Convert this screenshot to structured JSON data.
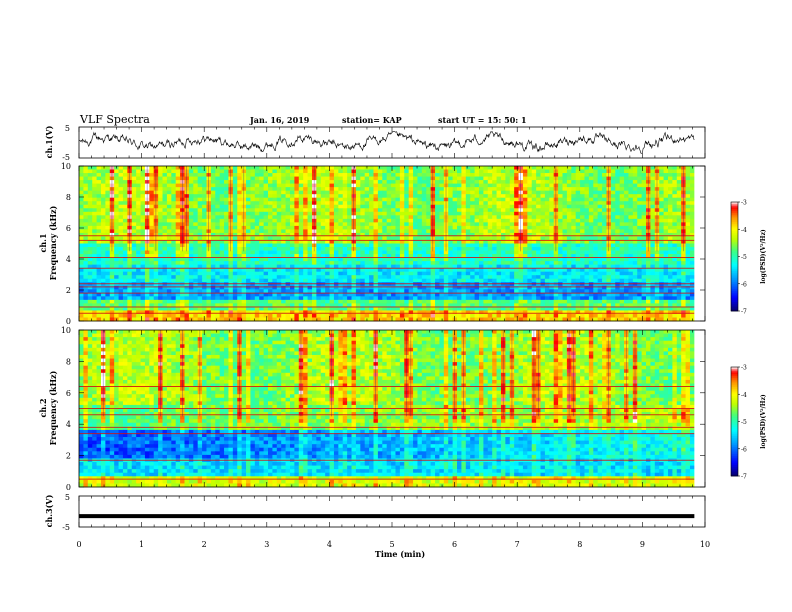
{
  "header": {
    "title": "VLF Spectra",
    "date": "Jan. 16, 2019",
    "station": "station= KAP",
    "start": "start  UT  =   15: 50: 1"
  },
  "colors": {
    "waveform": "#000000",
    "colormap": [
      "#08006a",
      "#0000ff",
      "#00a0ff",
      "#00ffff",
      "#40ff80",
      "#c0ff00",
      "#ffff00",
      "#ff9000",
      "#ff0000",
      "#ffffff"
    ]
  },
  "chart_data": [
    {
      "type": "line",
      "panel": "ch1-waveform",
      "ylabel": "ch.1(V)",
      "ylim": [
        -5,
        5
      ],
      "ytick_labels": [
        "5",
        "-5"
      ],
      "xlim": [
        0,
        10
      ],
      "x_extent": [
        0,
        9.83
      ],
      "description_values": "noisy waveform centered near 0 V with amplitude about 2 V"
    },
    {
      "type": "heatmap",
      "panel": "ch1-spectrogram",
      "ylabel": "ch.1\nFrequency (kHz)",
      "ylim": [
        0,
        10
      ],
      "yticks": [
        0,
        2,
        4,
        6,
        8,
        10
      ],
      "xlim": [
        0,
        10
      ],
      "x_extent": [
        0,
        9.83
      ],
      "colorbar": {
        "label": "log(PSD)(V²/Hz)",
        "range": [
          -7,
          -3
        ],
        "ticks": [
          -3,
          -4,
          -5,
          -6,
          -7
        ]
      },
      "horizontal_lines_khz": [
        0.5,
        0.9,
        1.8,
        2.2,
        2.4,
        3.4,
        4.1,
        5.2,
        5.5
      ]
    },
    {
      "type": "heatmap",
      "panel": "ch2-spectrogram",
      "ylabel": "ch.2\nFrequency (kHz)",
      "ylim": [
        0,
        10
      ],
      "yticks": [
        0,
        2,
        4,
        6,
        8,
        10
      ],
      "xlim": [
        0,
        10
      ],
      "x_extent": [
        0,
        9.83
      ],
      "colorbar": {
        "label": "log(PSD)(V²/Hz)",
        "range": [
          -7,
          -3
        ],
        "ticks": [
          -3,
          -4,
          -5,
          -6,
          -7
        ]
      },
      "horizontal_lines_khz": [
        0.5,
        1.7,
        3.4,
        3.8,
        4.6,
        5.0,
        6.4
      ]
    },
    {
      "type": "line",
      "panel": "ch3-waveform",
      "ylabel": "ch.3(V)",
      "ylim": [
        -5,
        5
      ],
      "ytick_labels": [
        "5",
        "-5"
      ],
      "xlim": [
        0,
        10
      ],
      "x_extent": [
        0,
        9.83
      ],
      "values_constant": -1.5
    }
  ],
  "xaxis": {
    "label": "Time  (min)",
    "ticks": [
      "0",
      "1",
      "2",
      "3",
      "4",
      "5",
      "6",
      "7",
      "8",
      "9",
      "10"
    ]
  }
}
